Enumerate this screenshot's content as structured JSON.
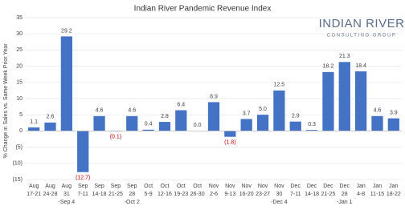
{
  "chart_data": {
    "type": "bar",
    "title": "Indian River Pandemic Revenue Index",
    "y_label": "% Change in Sales vs. Same Week Prior Year",
    "logo": {
      "name": "INDIAN RIVER",
      "tagline": "CONSULTING GROUP"
    },
    "categories": [
      [
        "Aug",
        "17-21"
      ],
      [
        "Aug",
        "24-28"
      ],
      [
        "Aug",
        "31",
        "-Sep 4"
      ],
      [
        "Sep",
        "7-11"
      ],
      [
        "Sep",
        "14-18"
      ],
      [
        "Sep",
        "21-25"
      ],
      [
        "Sep",
        "28",
        "-Oct 2"
      ],
      [
        "Oct",
        "5-9"
      ],
      [
        "Oct",
        "12-16"
      ],
      [
        "Oct",
        "19-23"
      ],
      [
        "Oct",
        "26-30"
      ],
      [
        "Nov",
        "2-6"
      ],
      [
        "Nov",
        "9-13"
      ],
      [
        "Nov",
        "16-20"
      ],
      [
        "Nov",
        "23-27"
      ],
      [
        "Nov",
        "30",
        "-Dec 4"
      ],
      [
        "Dec",
        "7-11"
      ],
      [
        "Dec",
        "14-18"
      ],
      [
        "Dec",
        "21-25"
      ],
      [
        "Dec",
        "28",
        "-Jan 1"
      ],
      [
        "Jan",
        "4-8"
      ],
      [
        "Jan",
        "11-15"
      ],
      [
        "Jan",
        "18-22"
      ]
    ],
    "values": [
      1.1,
      2.6,
      29.2,
      -12.7,
      4.6,
      -0.1,
      4.6,
      0.4,
      2.8,
      6.4,
      0.0,
      8.9,
      -1.8,
      3.7,
      5.0,
      12.5,
      2.9,
      0.3,
      18.2,
      21.3,
      18.4,
      4.6,
      3.9
    ],
    "value_labels": [
      "1.1",
      "2.6",
      "29.2",
      "(12.7)",
      "4.6",
      "(0.1)",
      "4.6",
      "0.4",
      "2.8",
      "6.4",
      "0.0",
      "8.9",
      "(1.8)",
      "3.7",
      "5.0",
      "12.5",
      "2.9",
      "0.3",
      "18.2",
      "21.3",
      "18.4",
      "4.6",
      "3.9"
    ],
    "color": "#4472c4",
    "negative_label_color": "#c00000",
    "ylim": [
      -15,
      35
    ],
    "yticks": [
      {
        "value": -15,
        "label": "(15)"
      },
      {
        "value": -10,
        "label": "(10)"
      },
      {
        "value": -5,
        "label": "(5)"
      },
      0,
      5,
      10,
      15,
      20,
      25,
      30,
      35
    ],
    "grid": true
  }
}
